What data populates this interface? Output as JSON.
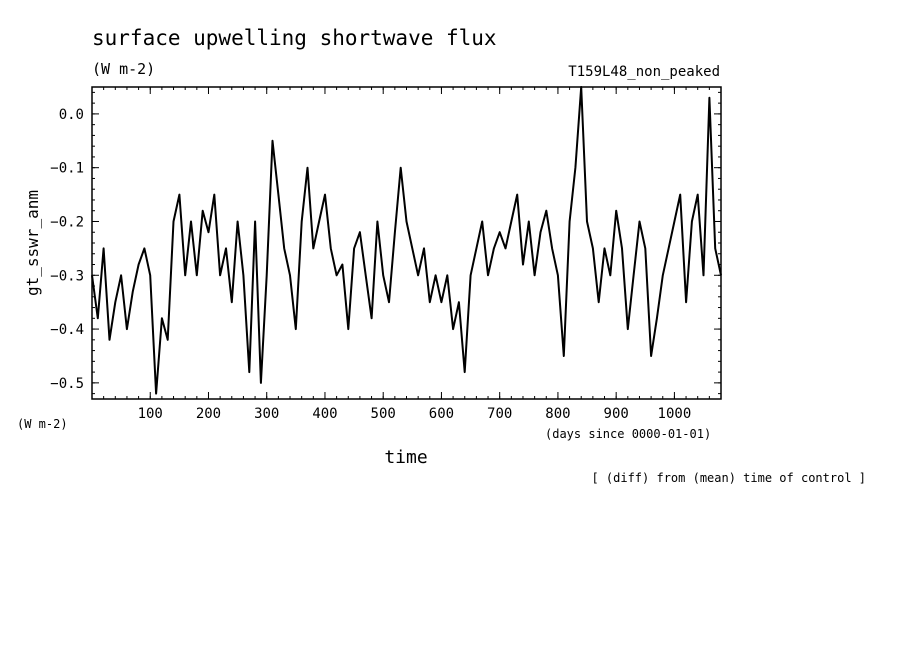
{
  "chart_data": {
    "type": "line",
    "title": "surface upwelling shortwave flux",
    "units": "(W m-2)",
    "experiment": "T159L48_non_peaked",
    "ylabel": "gt_sswr_anm",
    "yunits": "(W m-2)",
    "xlabel": "time",
    "xunits": "(days since 0000-01-01)",
    "note": "[ (diff) from (mean) time of control ]",
    "xlim": [
      0,
      1080
    ],
    "ylim": [
      -0.53,
      0.05
    ],
    "xticks": [
      100,
      200,
      300,
      400,
      500,
      600,
      700,
      800,
      900,
      1000
    ],
    "yticks": [
      0.0,
      -0.1,
      -0.2,
      -0.3,
      -0.4,
      -0.5
    ],
    "ytick_labels": [
      "0.0",
      "−0.1",
      "−0.2",
      "−0.3",
      "−0.4",
      "−0.5"
    ],
    "grid": false,
    "series": [
      {
        "x": [
          0,
          10,
          20,
          30,
          40,
          50,
          60,
          70,
          80,
          90,
          100,
          110,
          120,
          130,
          140,
          150,
          160,
          170,
          180,
          190,
          200,
          210,
          220,
          230,
          240,
          250,
          260,
          270,
          280,
          290,
          300,
          310,
          320,
          330,
          340,
          350,
          360,
          370,
          380,
          390,
          400,
          410,
          420,
          430,
          440,
          450,
          460,
          470,
          480,
          490,
          500,
          510,
          520,
          530,
          540,
          550,
          560,
          570,
          580,
          590,
          600,
          610,
          620,
          630,
          640,
          650,
          660,
          670,
          680,
          690,
          700,
          710,
          720,
          730,
          740,
          750,
          760,
          770,
          780,
          790,
          800,
          810,
          820,
          830,
          840,
          850,
          860,
          870,
          880,
          890,
          900,
          910,
          920,
          930,
          940,
          950,
          960,
          970,
          980,
          990,
          1000,
          1010,
          1020,
          1030,
          1040,
          1050,
          1060,
          1070,
          1080
        ],
        "y": [
          -0.3,
          -0.38,
          -0.25,
          -0.42,
          -0.35,
          -0.3,
          -0.4,
          -0.33,
          -0.28,
          -0.25,
          -0.3,
          -0.52,
          -0.38,
          -0.42,
          -0.2,
          -0.15,
          -0.3,
          -0.2,
          -0.3,
          -0.18,
          -0.22,
          -0.15,
          -0.3,
          -0.25,
          -0.35,
          -0.2,
          -0.3,
          -0.48,
          -0.2,
          -0.5,
          -0.3,
          -0.05,
          -0.15,
          -0.25,
          -0.3,
          -0.4,
          -0.2,
          -0.1,
          -0.25,
          -0.2,
          -0.15,
          -0.25,
          -0.3,
          -0.28,
          -0.4,
          -0.25,
          -0.22,
          -0.3,
          -0.38,
          -0.2,
          -0.3,
          -0.35,
          -0.22,
          -0.1,
          -0.2,
          -0.25,
          -0.3,
          -0.25,
          -0.35,
          -0.3,
          -0.35,
          -0.3,
          -0.4,
          -0.35,
          -0.48,
          -0.3,
          -0.25,
          -0.2,
          -0.3,
          -0.25,
          -0.22,
          -0.25,
          -0.2,
          -0.15,
          -0.28,
          -0.2,
          -0.3,
          -0.22,
          -0.18,
          -0.25,
          -0.3,
          -0.45,
          -0.2,
          -0.1,
          0.05,
          -0.2,
          -0.25,
          -0.35,
          -0.25,
          -0.3,
          -0.18,
          -0.25,
          -0.4,
          -0.3,
          -0.2,
          -0.25,
          -0.45,
          -0.38,
          -0.3,
          -0.25,
          -0.2,
          -0.15,
          -0.35,
          -0.2,
          -0.15,
          -0.3,
          0.03,
          -0.25,
          -0.3
        ]
      }
    ]
  }
}
